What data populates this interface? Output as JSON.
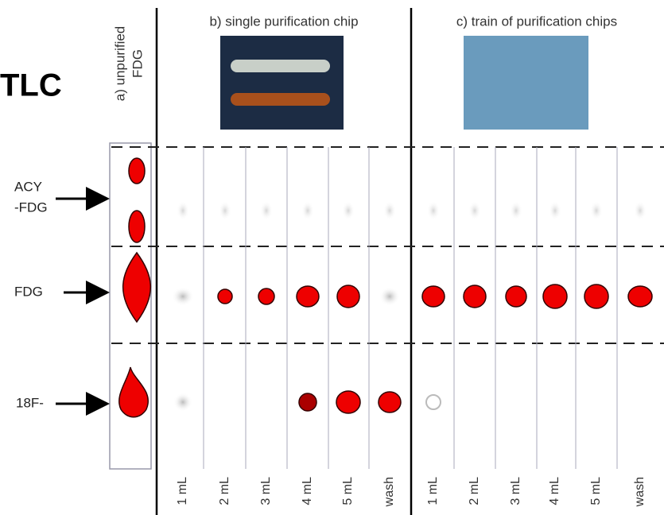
{
  "title": "TLC",
  "lane_a": {
    "lines": [
      "a) unpurified",
      "FDG"
    ]
  },
  "panels": [
    {
      "title": "b) single purification chip",
      "lanes": [
        "1 mL",
        "2 mL",
        "3 mL",
        "4 mL",
        "5 mL",
        "wash"
      ]
    },
    {
      "title": "c) train of purification chips",
      "lanes": [
        "1 mL",
        "2 mL",
        "3 mL",
        "4 mL",
        "5 mL",
        "wash"
      ]
    }
  ],
  "rows": [
    {
      "lines": [
        "ACY",
        "-FDG"
      ]
    },
    {
      "lines": [
        "FDG"
      ]
    },
    {
      "lines": [
        "18F-"
      ]
    }
  ]
}
